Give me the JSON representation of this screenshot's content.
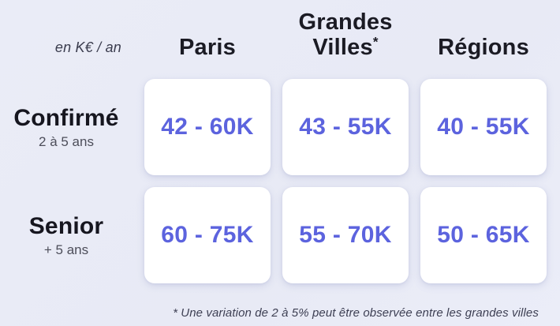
{
  "table": {
    "unit_label": "en K€ / an",
    "columns": [
      {
        "label": "Paris"
      },
      {
        "label": "Grandes Villes",
        "line1": "Grandes",
        "line2": "Villes",
        "mark": "*"
      },
      {
        "label": "Régions"
      }
    ],
    "rows": [
      {
        "label": "Confirmé",
        "sublabel": "2 à 5 ans",
        "values": [
          "42 - 60K",
          "43 - 55K",
          "40 - 55K"
        ]
      },
      {
        "label": "Senior",
        "sublabel": "+ 5 ans",
        "values": [
          "60 - 75K",
          "55 - 70K",
          "50 - 65K"
        ]
      }
    ],
    "footnote": "* Une variation de 2 à 5% peut être observée entre les grandes villes"
  },
  "colors": {
    "background": "#e9ebf6",
    "card": "#ffffff",
    "value_accent": "#5c63de",
    "heading": "#1b1b24",
    "subtext": "#4d4e5a",
    "footnote": "#3d3f53"
  },
  "chart_data": {
    "type": "table",
    "title": "",
    "unit": "en K€ / an",
    "columns": [
      "Paris",
      "Grandes Villes*",
      "Régions"
    ],
    "rows": [
      "Confirmé (2 à 5 ans)",
      "Senior (+ 5 ans)"
    ],
    "values": [
      [
        "42 - 60K",
        "43 - 55K",
        "40 - 55K"
      ],
      [
        "60 - 75K",
        "55 - 70K",
        "50 - 65K"
      ]
    ],
    "numeric_ranges_k_eur_per_year": {
      "Confirmé": {
        "Paris": [
          42,
          60
        ],
        "Grandes Villes": [
          43,
          55
        ],
        "Régions": [
          40,
          55
        ]
      },
      "Senior": {
        "Paris": [
          60,
          75
        ],
        "Grandes Villes": [
          55,
          70
        ],
        "Régions": [
          50,
          65
        ]
      }
    },
    "footnote": "* Une variation de 2 à 5% peut être observée entre les grandes villes"
  }
}
